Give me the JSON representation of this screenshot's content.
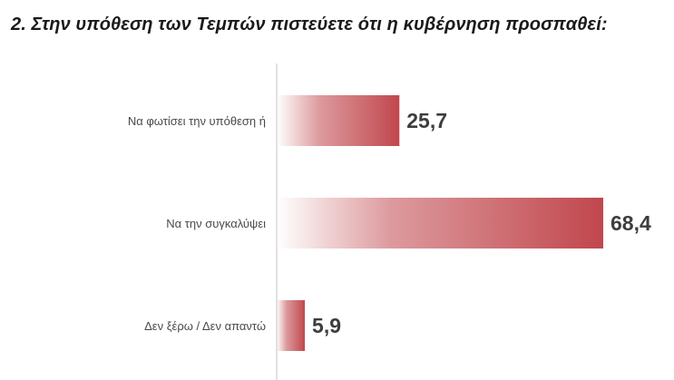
{
  "chart_data": {
    "type": "bar",
    "orientation": "horizontal",
    "title": "2. Στην υπόθεση των Τεμπών πιστεύετε ότι η κυβέρνηση προσπαθεί:",
    "categories": [
      "Να φωτίσει την υπόθεση ή",
      "Να την συγκαλύψει",
      "Δεν ξέρω / Δεν απαντώ"
    ],
    "values": [
      25.7,
      68.4,
      5.9
    ],
    "value_labels": [
      "25,7",
      "68,4",
      "5,9"
    ],
    "xlim": [
      0,
      100
    ],
    "grid": false,
    "legend": "none",
    "bar_color": "#c0474d",
    "bar_fade_color": "#ffffff",
    "axis_color": "#d9d9d9"
  }
}
